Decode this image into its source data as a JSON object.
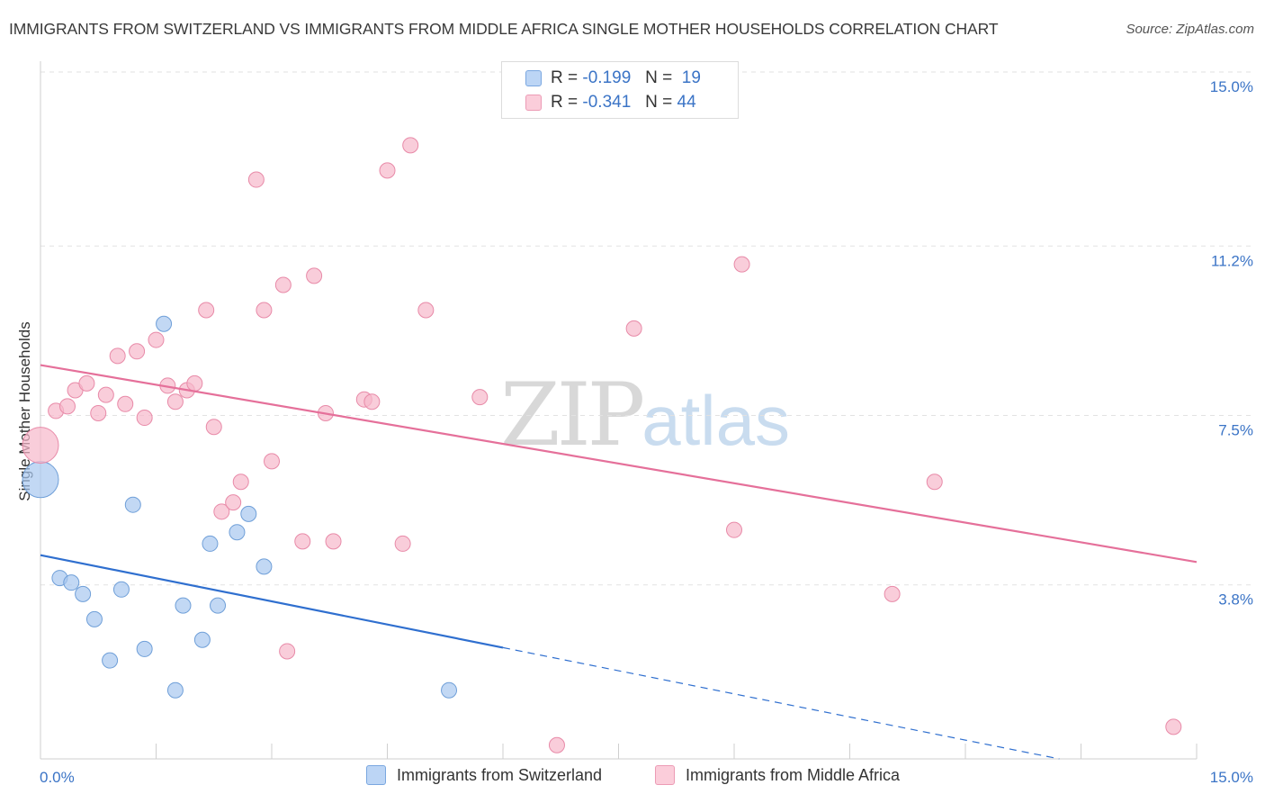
{
  "header": {
    "title": "IMMIGRANTS FROM SWITZERLAND VS IMMIGRANTS FROM MIDDLE AFRICA SINGLE MOTHER HOUSEHOLDS CORRELATION CHART",
    "source": "Source: ZipAtlas.com"
  },
  "watermark": {
    "zip": "ZIP",
    "atlas": "atlas"
  },
  "legend": {
    "r_label": "R =",
    "n_label": "N =",
    "rows": [
      {
        "r": "-0.199",
        "n": "19",
        "color": "#a8c8f0"
      },
      {
        "r": "-0.341",
        "n": "44",
        "color": "#f7b8cb"
      }
    ]
  },
  "chart_data": {
    "type": "scatter",
    "title": "IMMIGRANTS FROM SWITZERLAND VS IMMIGRANTS FROM MIDDLE AFRICA SINGLE MOTHER HOUSEHOLDS CORRELATION CHART",
    "xlabel": "",
    "ylabel": "Single Mother Households",
    "xlim": [
      0,
      15
    ],
    "ylim": [
      0,
      15
    ],
    "x_tick_labels": [
      "0.0%",
      "15.0%"
    ],
    "y_ticks": [
      3.8,
      7.5,
      11.2,
      15.0
    ],
    "y_tick_labels": [
      "3.8%",
      "7.5%",
      "11.2%",
      "15.0%"
    ],
    "grid": true,
    "series": [
      {
        "name": "Immigrants from Switzerland",
        "color": "#a8c8f0",
        "stroke": "#6f9fd8",
        "trend_color": "#2f6fcf",
        "trend": {
          "x0": 0,
          "y0": 4.45,
          "x1": 15,
          "y1": -0.6,
          "solid_until": 6.0
        },
        "points": [
          {
            "x": 0.0,
            "y": 6.1,
            "big": true
          },
          {
            "x": 0.25,
            "y": 3.95
          },
          {
            "x": 0.4,
            "y": 3.85
          },
          {
            "x": 0.55,
            "y": 3.6
          },
          {
            "x": 0.7,
            "y": 3.05
          },
          {
            "x": 0.9,
            "y": 2.15
          },
          {
            "x": 1.05,
            "y": 3.7
          },
          {
            "x": 1.2,
            "y": 5.55
          },
          {
            "x": 1.35,
            "y": 2.4
          },
          {
            "x": 1.6,
            "y": 9.5
          },
          {
            "x": 1.75,
            "y": 1.5
          },
          {
            "x": 1.85,
            "y": 3.35
          },
          {
            "x": 2.1,
            "y": 2.6
          },
          {
            "x": 2.2,
            "y": 4.7
          },
          {
            "x": 2.3,
            "y": 3.35
          },
          {
            "x": 2.55,
            "y": 4.95
          },
          {
            "x": 2.7,
            "y": 5.35
          },
          {
            "x": 2.9,
            "y": 4.2
          },
          {
            "x": 5.3,
            "y": 1.5
          }
        ]
      },
      {
        "name": "Immigrants from Middle Africa",
        "color": "#f7b8cb",
        "stroke": "#e88aa8",
        "trend_color": "#e5709a",
        "trend": {
          "x0": 0,
          "y0": 8.6,
          "x1": 15,
          "y1": 4.3,
          "solid_until": 15
        },
        "points": [
          {
            "x": 0.0,
            "y": 6.85,
            "big": true
          },
          {
            "x": 0.2,
            "y": 7.6
          },
          {
            "x": 0.35,
            "y": 7.7
          },
          {
            "x": 0.45,
            "y": 8.05
          },
          {
            "x": 0.6,
            "y": 8.2
          },
          {
            "x": 0.75,
            "y": 7.55
          },
          {
            "x": 0.85,
            "y": 7.95
          },
          {
            "x": 1.0,
            "y": 8.8
          },
          {
            "x": 1.1,
            "y": 7.75
          },
          {
            "x": 1.25,
            "y": 8.9
          },
          {
            "x": 1.35,
            "y": 7.45
          },
          {
            "x": 1.5,
            "y": 9.15
          },
          {
            "x": 1.65,
            "y": 8.15
          },
          {
            "x": 1.75,
            "y": 7.8
          },
          {
            "x": 1.9,
            "y": 8.05
          },
          {
            "x": 2.0,
            "y": 8.2
          },
          {
            "x": 2.15,
            "y": 9.8
          },
          {
            "x": 2.25,
            "y": 7.25
          },
          {
            "x": 2.35,
            "y": 5.4
          },
          {
            "x": 2.5,
            "y": 5.6
          },
          {
            "x": 2.6,
            "y": 6.05
          },
          {
            "x": 2.8,
            "y": 12.65
          },
          {
            "x": 2.9,
            "y": 9.8
          },
          {
            "x": 3.0,
            "y": 6.5
          },
          {
            "x": 3.15,
            "y": 10.35
          },
          {
            "x": 3.2,
            "y": 2.35
          },
          {
            "x": 3.4,
            "y": 4.75
          },
          {
            "x": 3.55,
            "y": 10.55
          },
          {
            "x": 3.7,
            "y": 7.55
          },
          {
            "x": 3.8,
            "y": 4.75
          },
          {
            "x": 4.2,
            "y": 7.85
          },
          {
            "x": 4.3,
            "y": 7.8
          },
          {
            "x": 4.5,
            "y": 12.85
          },
          {
            "x": 4.7,
            "y": 4.7
          },
          {
            "x": 4.8,
            "y": 13.4
          },
          {
            "x": 5.0,
            "y": 9.8
          },
          {
            "x": 5.7,
            "y": 7.9
          },
          {
            "x": 6.7,
            "y": 0.3
          },
          {
            "x": 7.7,
            "y": 9.4
          },
          {
            "x": 9.0,
            "y": 5.0
          },
          {
            "x": 9.1,
            "y": 10.8
          },
          {
            "x": 11.05,
            "y": 3.6
          },
          {
            "x": 11.6,
            "y": 6.05
          },
          {
            "x": 14.7,
            "y": 0.7
          }
        ]
      }
    ]
  }
}
